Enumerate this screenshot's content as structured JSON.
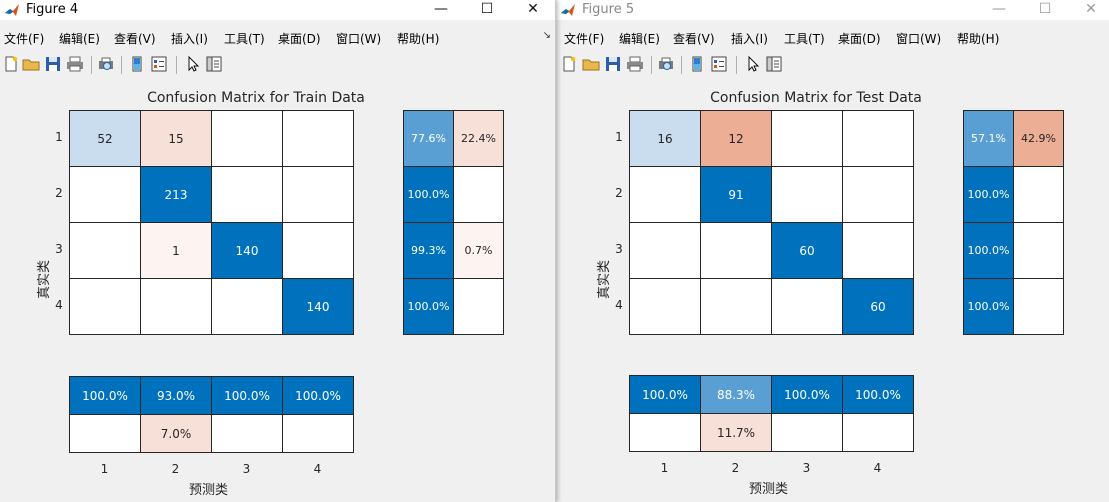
{
  "menu": [
    "文件(F)",
    "编辑(E)",
    "查看(V)",
    "插入(I)",
    "工具(T)",
    "桌面(D)",
    "窗口(W)",
    "帮助(H)"
  ],
  "window_controls": {
    "minimize": "—",
    "maximize": "☐",
    "close": "✕"
  },
  "toolbar_icons": [
    "new-file-icon",
    "open-folder-icon",
    "save-icon",
    "print-icon",
    "print-preview-icon",
    "colorbar-icon",
    "legend-icon",
    "pointer-icon",
    "property-inspector-icon"
  ],
  "windows": [
    {
      "title": "Figure 4"
    },
    {
      "title": "Figure 5"
    }
  ],
  "colors": {
    "blue_dark": "#0072bd",
    "blue_mid": "#5a9fd4",
    "blue_light": "#c9ddef",
    "red_light": "#f7e0d8",
    "red_mid": "#edae96",
    "white": "#ffffff",
    "red_faint": "#fdf3f1"
  },
  "chart_data": [
    {
      "type": "heatmap",
      "title": "Confusion Matrix for Train Data",
      "xlabel": "预测类",
      "ylabel": "真实类",
      "classes": [
        "1",
        "2",
        "3",
        "4"
      ],
      "matrix": [
        [
          52,
          15,
          null,
          null
        ],
        [
          null,
          213,
          null,
          null
        ],
        [
          null,
          1,
          140,
          null
        ],
        [
          null,
          null,
          null,
          140
        ]
      ],
      "row_summary": [
        [
          "77.6%",
          "22.4%"
        ],
        [
          "100.0%",
          ""
        ],
        [
          "99.3%",
          "0.7%"
        ],
        [
          "100.0%",
          ""
        ]
      ],
      "column_summary": {
        "correct": [
          "100.0%",
          "93.0%",
          "100.0%",
          "100.0%"
        ],
        "incorrect": [
          "",
          "7.0%",
          "",
          ""
        ]
      }
    },
    {
      "type": "heatmap",
      "title": "Confusion Matrix for Test Data",
      "xlabel": "预测类",
      "ylabel": "真实类",
      "classes": [
        "1",
        "2",
        "3",
        "4"
      ],
      "matrix": [
        [
          16,
          12,
          null,
          null
        ],
        [
          null,
          91,
          null,
          null
        ],
        [
          null,
          null,
          60,
          null
        ],
        [
          null,
          null,
          null,
          60
        ]
      ],
      "row_summary": [
        [
          "57.1%",
          "42.9%"
        ],
        [
          "100.0%",
          ""
        ],
        [
          "100.0%",
          ""
        ],
        [
          "100.0%",
          ""
        ]
      ],
      "column_summary": {
        "correct": [
          "100.0%",
          "88.3%",
          "100.0%",
          "100.0%"
        ],
        "incorrect": [
          "",
          "11.7%",
          "",
          ""
        ]
      }
    }
  ]
}
